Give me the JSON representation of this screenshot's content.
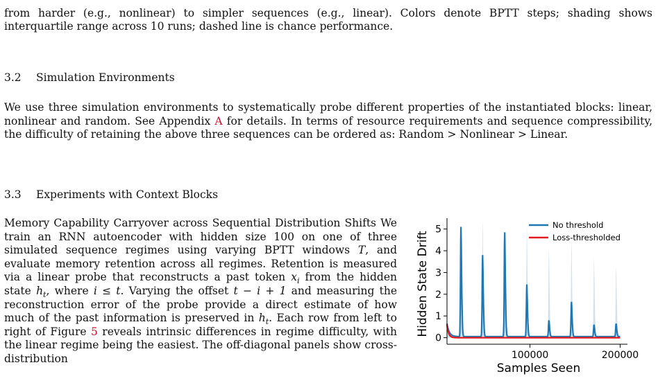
{
  "caption_tail": "from harder (e.g., nonlinear) to simpler sequences (e.g., linear). Colors denote BPTT steps; shading shows interquartile range across 10 runs; dashed line is chance performance.",
  "section_32": {
    "num": "3.2",
    "title": "Simulation Environments"
  },
  "para_32": {
    "before_link": "We use three simulation environments to systematically probe different properties of the instantiated blocks: linear, nonlinear and random. See Appendix ",
    "link": "A",
    "after_link": " for details. In terms of resource requirements and sequence compressibility, the difficulty of retaining the above three sequences can be ordered as: Random  >  Nonlinear  >  Linear."
  },
  "section_33": {
    "num": "3.3",
    "title": "Experiments with Context Blocks"
  },
  "para_33": {
    "runin": "Memory Capability Carryover across Sequential Distribution Shifts",
    "t1": "  We train an RNN autoencoder with hidden size 100 on one of three simulated sequence regimes using varying BPTT windows ",
    "T": "T",
    "t2": ", and evaluate memory retention across all regimes. Retention is measured via a linear probe that reconstructs a past token ",
    "x": "x",
    "sub_i": "i",
    "t3": " from the hidden state ",
    "h": "h",
    "sub_t": "t",
    "t4": ", where ",
    "cond": "i ≤ t",
    "t5": ". Varying the offset ",
    "offset": "t − i + 1",
    "t6": " and measuring the reconstruction error of the probe provide a direct estimate of how much of the past information is preserved in ",
    "t7": ". Each row from left to right of Figure ",
    "fig_link": "5",
    "t8": " reveals intrinsic differences in regime difficulty, with the linear regime being the easiest. The off-diagonal panels show cross-distribution"
  },
  "chart_data": {
    "type": "line",
    "xlabel": "Samples Seen",
    "ylabel": "Hidden State Drift",
    "xlim": [
      0,
      205000
    ],
    "ylim": [
      -0.3,
      5.5
    ],
    "xticks": [
      100000,
      200000
    ],
    "yticks": [
      0,
      1,
      2,
      3,
      4,
      5
    ],
    "grid": false,
    "legend_position": "top-right",
    "colors": {
      "No threshold": "#1f77b4",
      "Loss-thresholded": "#e41a1c"
    },
    "series": [
      {
        "name": "No threshold",
        "baseline": 0.05,
        "spikes": [
          {
            "x": 23500,
            "peak": 5.1,
            "band_peak": 5.1
          },
          {
            "x": 47500,
            "peak": 3.8,
            "band_peak": 5.4
          },
          {
            "x": 72000,
            "peak": 4.85,
            "band_peak": 4.85
          },
          {
            "x": 96500,
            "peak": 2.45,
            "band_peak": 5.3
          },
          {
            "x": 121000,
            "peak": 0.8,
            "band_peak": 4.1
          },
          {
            "x": 146000,
            "peak": 1.65,
            "band_peak": 4.45
          },
          {
            "x": 171000,
            "peak": 0.6,
            "band_peak": 3.7
          },
          {
            "x": 195500,
            "peak": 0.65,
            "band_peak": 3.3
          }
        ],
        "start_value": 0.65
      },
      {
        "name": "Loss-thresholded",
        "start_value": 0.6,
        "baseline": 0.0
      }
    ]
  }
}
